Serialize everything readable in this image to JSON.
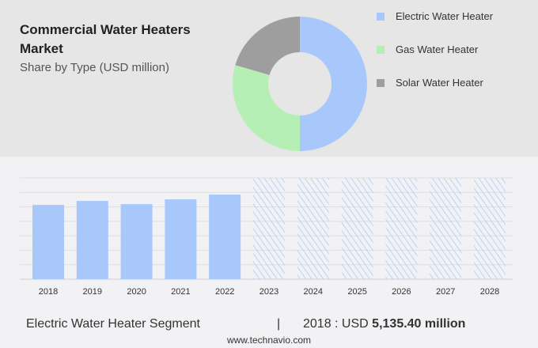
{
  "header": {
    "title": "Commercial Water Heaters Market",
    "subtitle": "Share by Type (USD million)"
  },
  "chart_data": [
    {
      "type": "pie",
      "style": "donut",
      "title": "Commercial Water Heaters Market",
      "subtitle": "Share by Type (USD million)",
      "legend_position": "right",
      "slices": [
        {
          "name": "Electric Water Heater",
          "value": 50,
          "color": "#a8c8fb"
        },
        {
          "name": "Gas Water Heater",
          "value": 29.5,
          "color": "#b5efb5"
        },
        {
          "name": "Solar Water Heater",
          "value": 20.5,
          "color": "#9e9e9e"
        }
      ]
    },
    {
      "type": "bar",
      "categories": [
        "2018",
        "2019",
        "2020",
        "2021",
        "2022",
        "2023",
        "2024",
        "2025",
        "2026",
        "2027",
        "2028"
      ],
      "values": [
        5135.4,
        5410,
        5190,
        5520,
        5850,
        null,
        null,
        null,
        null,
        null,
        null
      ],
      "forecast_categories": [
        "2023",
        "2024",
        "2025",
        "2026",
        "2027",
        "2028"
      ],
      "color": "#a8c8fb",
      "grid": true,
      "ylim": [
        0,
        7000
      ],
      "xlabel": "",
      "ylabel": ""
    }
  ],
  "footer": {
    "segment": "Electric Water Heater Segment",
    "separator": "|",
    "year_label": "2018 : USD",
    "value": "5,135.40 million",
    "url": "www.technavio.com"
  }
}
